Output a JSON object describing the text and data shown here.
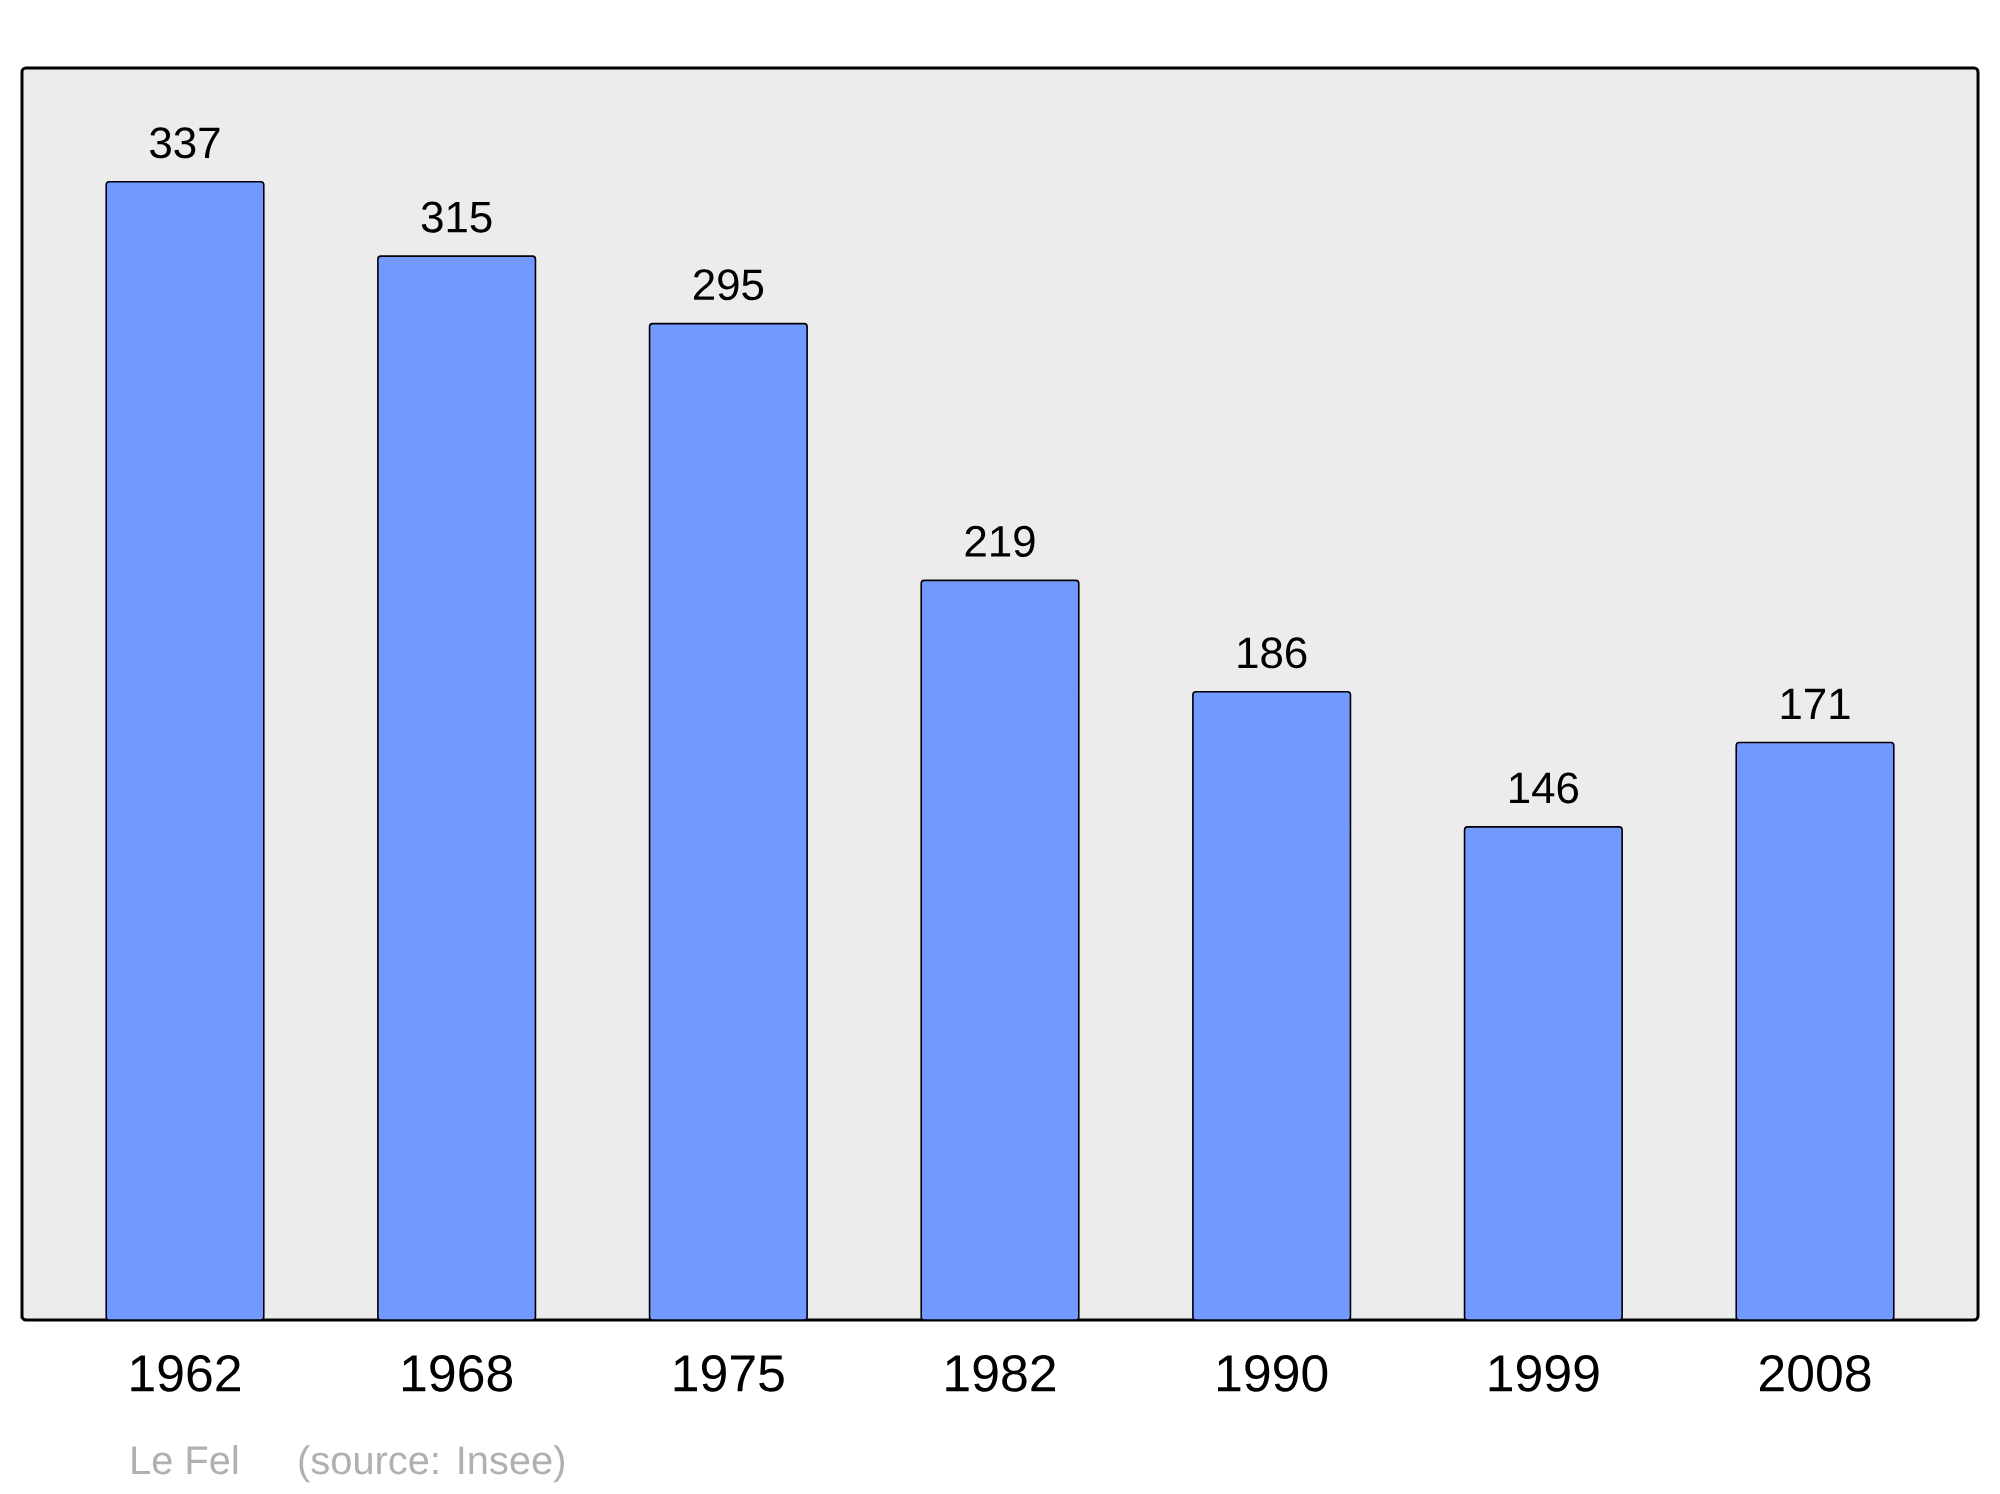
{
  "chart_data": {
    "type": "bar",
    "categories": [
      "1962",
      "1968",
      "1975",
      "1982",
      "1990",
      "1999",
      "2008"
    ],
    "values": [
      337,
      315,
      295,
      219,
      186,
      146,
      171
    ],
    "color": "#7299ff",
    "data_labels": true,
    "grid": false,
    "tick_labels": "x",
    "annotations": [
      "Le Fel",
      "(source: Insee)"
    ]
  }
}
